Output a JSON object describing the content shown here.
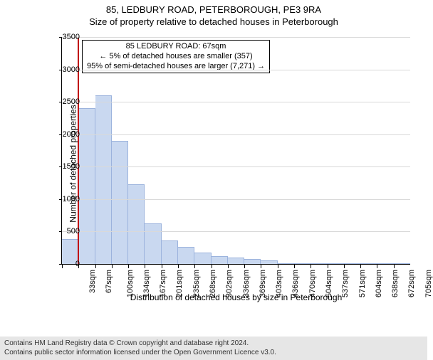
{
  "title": "85, LEDBURY ROAD, PETERBOROUGH, PE3 9RA",
  "subtitle": "Size of property relative to detached houses in Peterborough",
  "chart": {
    "type": "histogram",
    "ylabel": "Number of detached properties",
    "xlabel": "Distribution of detached houses by size in Peterborough",
    "ylim_max": 3500,
    "ytick_step": 500,
    "yticks": [
      0,
      500,
      1000,
      1500,
      2000,
      2500,
      3000,
      3500
    ],
    "x_categories": [
      "33sqm",
      "67sqm",
      "100sqm",
      "134sqm",
      "167sqm",
      "201sqm",
      "235sqm",
      "268sqm",
      "302sqm",
      "336sqm",
      "369sqm",
      "403sqm",
      "436sqm",
      "470sqm",
      "504sqm",
      "537sqm",
      "571sqm",
      "604sqm",
      "638sqm",
      "672sqm",
      "705sqm"
    ],
    "values": [
      380,
      2400,
      2600,
      1900,
      1230,
      630,
      360,
      260,
      180,
      120,
      100,
      80,
      60,
      0,
      0,
      0,
      0,
      0,
      0,
      0,
      0
    ],
    "bar_fill": "#c9d8f0",
    "bar_stroke": "#9cb3dd",
    "grid_color": "#d9d9d9",
    "background": "#ffffff",
    "marker": {
      "position_index": 1,
      "color": "#c00000"
    },
    "annotation": {
      "line1": "85 LEDBURY ROAD: 67sqm",
      "line2": "← 5% of detached houses are smaller (357)",
      "line3": "95% of semi-detached houses are larger (7,271) →"
    }
  },
  "footer": {
    "line1": "Contains HM Land Registry data © Crown copyright and database right 2024.",
    "line2": "Contains public sector information licensed under the Open Government Licence v3.0."
  }
}
